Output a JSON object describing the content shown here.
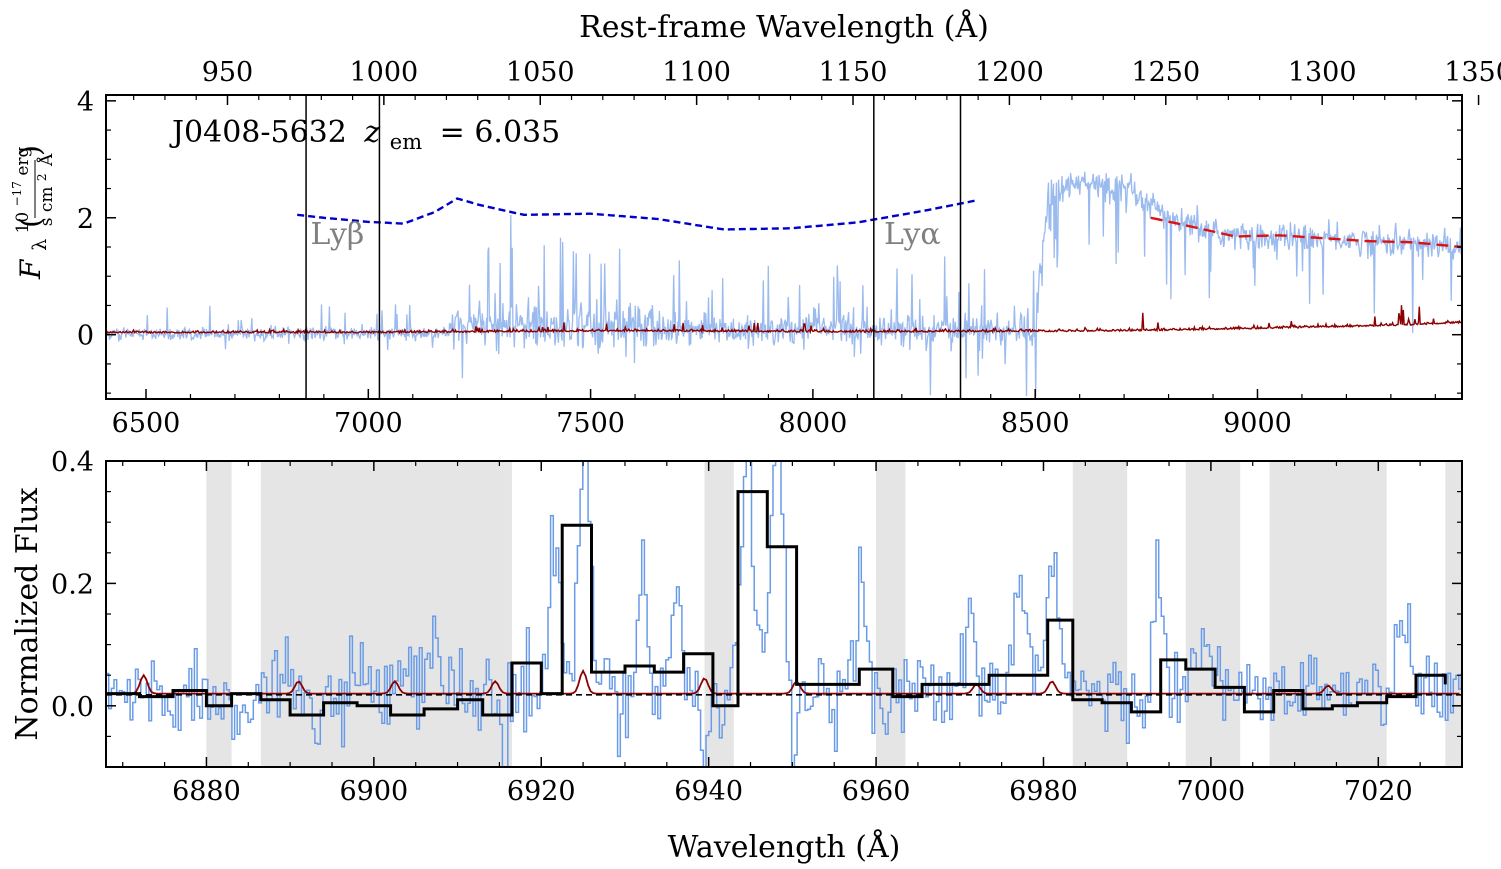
{
  "chart_data": [
    {
      "type": "line",
      "panel": "top",
      "annotation": "J0408-5632 z_em = 6.035",
      "annotation_name": "J0408-5632",
      "annotation_z_symbol": "z",
      "annotation_z_sub": "em",
      "annotation_z_value": "= 6.035",
      "xlabel": "",
      "ylabel": "F_λ (10^−17 erg / s cm² Å)",
      "ylabel_parts": {
        "main": "F",
        "sub": "λ",
        "num": "10",
        "exp": "−17",
        "num_unit": "erg",
        "den": "s cm",
        "den_exp": "2",
        "den_unit": "Å"
      },
      "top_xlabel": "Rest-frame Wavelength (Å)",
      "xlim": [
        6410,
        9460
      ],
      "ylim": [
        -1.1,
        4.1
      ],
      "redshift": 6.035,
      "x_ticks": [
        "6500",
        "7000",
        "7500",
        "8000",
        "8500",
        "9000"
      ],
      "x_tick_values": [
        6500,
        7000,
        7500,
        8000,
        8500,
        9000
      ],
      "y_ticks": [
        "0",
        "2",
        "4"
      ],
      "y_tick_values": [
        0,
        2,
        4
      ],
      "top_x_ticks": [
        "950",
        "1000",
        "1050",
        "1100",
        "1150",
        "1200",
        "1250",
        "1300",
        "1350"
      ],
      "top_x_tick_values": [
        950,
        1000,
        1050,
        1100,
        1150,
        1200,
        1250,
        1300,
        1350
      ],
      "vertical_lines": [
        6860,
        7025,
        8137,
        8332
      ],
      "line_labels": [
        {
          "text": "Lyβ",
          "x": 6870,
          "y": 1.55
        },
        {
          "text": "Lyα",
          "x": 8160,
          "y": 1.55
        }
      ],
      "series": [
        {
          "role": "flux",
          "color": "#9bbbef",
          "segments": [
            {
              "x_start": 6410,
              "x_end": 7180,
              "base": 0.02,
              "noise": 0.15
            },
            {
              "x_start": 7180,
              "x_end": 7700,
              "base": 0.15,
              "noise": 0.55
            },
            {
              "x_start": 7700,
              "x_end": 8500,
              "base": 0.08,
              "noise": 0.35
            },
            {
              "x_start": 8500,
              "x_end": 9460,
              "base": 2.0,
              "noise": 0.12
            }
          ],
          "continuum_points": [
            [
              8500,
              0.3
            ],
            [
              8530,
              2.4
            ],
            [
              8600,
              2.6
            ],
            [
              8700,
              2.5
            ],
            [
              8800,
              2.0
            ],
            [
              8900,
              1.75
            ],
            [
              9000,
              1.65
            ],
            [
              9100,
              1.68
            ],
            [
              9200,
              1.62
            ],
            [
              9300,
              1.58
            ],
            [
              9460,
              1.5
            ]
          ]
        },
        {
          "role": "error",
          "color": "#8b0000",
          "points": [
            [
              6410,
              0.03
            ],
            [
              7000,
              0.03
            ],
            [
              7600,
              0.06
            ],
            [
              8000,
              0.04
            ],
            [
              8500,
              0.05
            ],
            [
              8700,
              0.06
            ],
            [
              9000,
              0.1
            ],
            [
              9300,
              0.15
            ],
            [
              9460,
              0.2
            ]
          ]
        },
        {
          "role": "continuum-fit-blue",
          "color": "#0000cc",
          "style": "dashed",
          "points": [
            [
              6840,
              2.05
            ],
            [
              6900,
              2.0
            ],
            [
              7000,
              1.93
            ],
            [
              7080,
              1.9
            ],
            [
              7150,
              2.1
            ],
            [
              7200,
              2.33
            ],
            [
              7250,
              2.22
            ],
            [
              7350,
              2.05
            ],
            [
              7500,
              2.07
            ],
            [
              7650,
              1.98
            ],
            [
              7800,
              1.8
            ],
            [
              7950,
              1.82
            ],
            [
              8100,
              1.92
            ],
            [
              8250,
              2.12
            ],
            [
              8370,
              2.3
            ]
          ]
        },
        {
          "role": "continuum-fit-red",
          "color": "#dd1111",
          "style": "dashed",
          "points": [
            [
              8760,
              2.0
            ],
            [
              8850,
              1.85
            ],
            [
              8950,
              1.68
            ],
            [
              9050,
              1.7
            ],
            [
              9150,
              1.65
            ],
            [
              9250,
              1.6
            ],
            [
              9350,
              1.58
            ],
            [
              9460,
              1.5
            ]
          ]
        }
      ]
    },
    {
      "type": "line",
      "panel": "bottom",
      "xlabel": "Wavelength (Å)",
      "ylabel": "Normalized Flux",
      "xlim": [
        6868,
        7030
      ],
      "ylim": [
        -0.1,
        0.4
      ],
      "x_ticks": [
        "6880",
        "6900",
        "6920",
        "6940",
        "6960",
        "6980",
        "7000",
        "7020"
      ],
      "x_tick_values": [
        6880,
        6900,
        6920,
        6940,
        6960,
        6980,
        7000,
        7020
      ],
      "y_ticks": [
        "0.0",
        "0.2",
        "0.4"
      ],
      "y_tick_values": [
        0.0,
        0.2,
        0.4
      ],
      "shaded_regions": [
        [
          6880,
          6883
        ],
        [
          6886.5,
          6916.5
        ],
        [
          6939.5,
          6943
        ],
        [
          6960,
          6963.5
        ],
        [
          6983.5,
          6990
        ],
        [
          6997,
          7003.5
        ],
        [
          7007,
          7021
        ],
        [
          7028,
          7030
        ]
      ],
      "binned_flux": {
        "color": "#000000",
        "edges": [
          6868,
          6872,
          6876,
          6880,
          6883,
          6886.5,
          6890,
          6894,
          6898,
          6902,
          6906,
          6910,
          6913,
          6916.5,
          6920,
          6922.5,
          6926,
          6930,
          6933.5,
          6937,
          6940.5,
          6943.5,
          6947,
          6950.5,
          6954,
          6958,
          6962,
          6965.5,
          6969.5,
          6973.5,
          6977,
          6980.5,
          6983.5,
          6987,
          6990.5,
          6994,
          6997,
          7000.5,
          7004,
          7007.5,
          7011,
          7014.5,
          7017.5,
          7021,
          7024.5,
          7028
        ],
        "values": [
          0.02,
          0.015,
          0.025,
          0.0,
          0.02,
          0.01,
          -0.015,
          0.005,
          0.0,
          -0.015,
          -0.005,
          0.01,
          -0.015,
          0.07,
          0.02,
          0.295,
          0.055,
          0.065,
          0.055,
          0.085,
          0.0,
          0.35,
          0.26,
          0.035,
          0.035,
          0.06,
          0.015,
          0.035,
          0.035,
          0.05,
          0.05,
          0.14,
          0.01,
          0.005,
          -0.01,
          0.075,
          0.06,
          0.03,
          -0.01,
          0.025,
          -0.005,
          0.0,
          0.005,
          0.015,
          0.05,
          0.035
        ]
      },
      "flux": {
        "color": "#6a9be6",
        "base": 0.02,
        "noise": 0.035,
        "peaks": [
          [
            6921.5,
            0.26
          ],
          [
            6925,
            0.45
          ],
          [
            6932,
            0.21
          ],
          [
            6936,
            0.19
          ],
          [
            6944.5,
            0.45
          ],
          [
            6948,
            0.5
          ],
          [
            6958,
            0.22
          ],
          [
            6977,
            0.2
          ],
          [
            6981,
            0.28
          ],
          [
            6993.5,
            0.22
          ],
          [
            7022.5,
            0.13
          ],
          [
            6907,
            0.12
          ],
          [
            6971,
            0.12
          ],
          [
            6999,
            0.12
          ]
        ],
        "troughs": [
          [
            6893,
            -0.09
          ],
          [
            6915.5,
            -0.11
          ],
          [
            6950,
            -0.09
          ],
          [
            6939.5,
            -0.07
          ]
        ]
      },
      "error": {
        "color": "#8b0000",
        "base": 0.02,
        "bumps": [
          [
            6872.5,
            0.03
          ],
          [
            6891,
            0.02
          ],
          [
            6902.5,
            0.02
          ],
          [
            6914.5,
            0.02
          ],
          [
            6925,
            0.037
          ],
          [
            6939.5,
            0.025
          ],
          [
            6950.5,
            0.02
          ],
          [
            6972,
            0.015
          ],
          [
            6981,
            0.02
          ],
          [
            7014,
            0.013
          ]
        ]
      },
      "reference_line": {
        "value": 0.018,
        "color": "#000000",
        "style": "dashed"
      }
    }
  ]
}
